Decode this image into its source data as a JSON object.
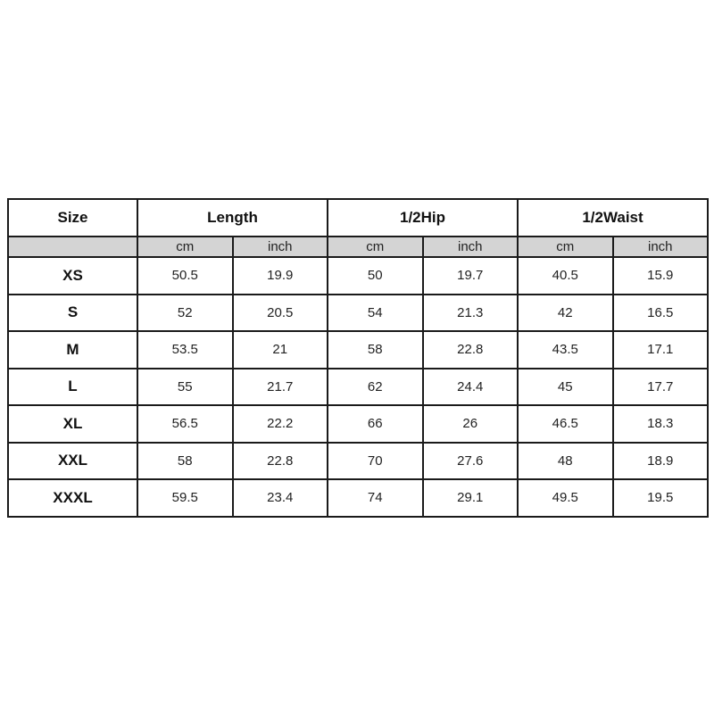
{
  "table": {
    "size_header": "Size",
    "groups": [
      "Length",
      "1/2Hip",
      "1/2Waist"
    ],
    "units": [
      "cm",
      "inch",
      "cm",
      "inch",
      "cm",
      "inch"
    ],
    "rows": [
      {
        "size": "XS",
        "values": [
          "50.5",
          "19.9",
          "50",
          "19.7",
          "40.5",
          "15.9"
        ]
      },
      {
        "size": "S",
        "values": [
          "52",
          "20.5",
          "54",
          "21.3",
          "42",
          "16.5"
        ]
      },
      {
        "size": "M",
        "values": [
          "53.5",
          "21",
          "58",
          "22.8",
          "43.5",
          "17.1"
        ]
      },
      {
        "size": "L",
        "values": [
          "55",
          "21.7",
          "62",
          "24.4",
          "45",
          "17.7"
        ]
      },
      {
        "size": "XL",
        "values": [
          "56.5",
          "22.2",
          "66",
          "26",
          "46.5",
          "18.3"
        ]
      },
      {
        "size": "XXL",
        "values": [
          "58",
          "22.8",
          "70",
          "27.6",
          "48",
          "18.9"
        ]
      },
      {
        "size": "XXXL",
        "values": [
          "59.5",
          "23.4",
          "74",
          "29.1",
          "49.5",
          "19.5"
        ]
      }
    ]
  }
}
